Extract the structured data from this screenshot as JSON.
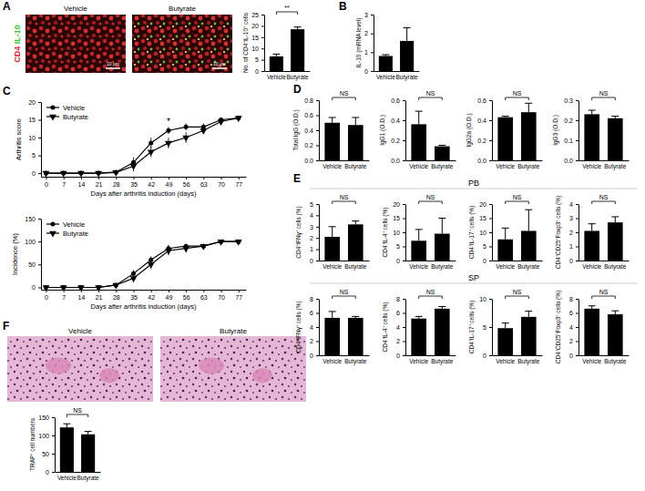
{
  "figure": {
    "panel_labels": [
      "A",
      "B",
      "C",
      "D",
      "E",
      "F"
    ],
    "row_labels": [
      "PB",
      "SP"
    ]
  },
  "images": {
    "A": {
      "labels": [
        "Vehicle",
        "Butyrate"
      ],
      "stain_labels": [
        {
          "text": "CD4",
          "color": "#e8202a"
        },
        {
          "text": "IL-10",
          "color": "#33cc33"
        }
      ],
      "scale_bar": "10 μm"
    },
    "F": {
      "labels": [
        "Vehicle",
        "Butyrate"
      ]
    }
  },
  "chart_data": [
    {
      "type": "bar",
      "y_label": "No. of CD4⁺IL-10⁺ cells",
      "categories": [
        "Vehicle",
        "Butyrate"
      ],
      "values": [
        6.5,
        18.5
      ],
      "errors": [
        1,
        1
      ],
      "color": "#000000",
      "ylim": [
        0,
        25
      ],
      "yticks": [
        0,
        5,
        10,
        15,
        20,
        25
      ],
      "annotations": [
        "**"
      ]
    },
    {
      "type": "bar",
      "y_label": "IL-10 (mRNA level)",
      "categories": [
        "Vehicle",
        "Butyrate"
      ],
      "values": [
        0.8,
        1.6
      ],
      "errors": [
        0.07,
        0.7
      ],
      "color": "#000000",
      "ylim": [
        0,
        3
      ],
      "yticks": [
        0,
        1,
        2,
        3
      ]
    },
    {
      "type": "line",
      "y_label": "Arthritis score",
      "x_label": "Days after arthritis induction (days)",
      "x": [
        0,
        7,
        14,
        21,
        28,
        35,
        42,
        49,
        56,
        63,
        70,
        77
      ],
      "xlim": [
        -2,
        80
      ],
      "xticks": [
        0,
        7,
        14,
        21,
        28,
        35,
        42,
        49,
        56,
        63,
        70,
        77
      ],
      "ylim": [
        -1,
        20
      ],
      "yticks": [
        0,
        5,
        10,
        15,
        20
      ],
      "legend": "top-left",
      "series": [
        {
          "name": "Vehicle",
          "color": "#000000",
          "marker": "circle",
          "values": [
            0,
            0,
            0,
            0,
            0.3,
            3,
            8.5,
            12,
            13,
            13,
            15,
            15.5
          ],
          "errors": [
            0,
            0,
            0,
            0,
            0.2,
            1.5,
            1.5,
            1,
            1,
            1,
            0.5,
            0.5
          ]
        },
        {
          "name": "Butyrate",
          "color": "#000000",
          "marker": "triangle-down",
          "values": [
            0,
            0,
            0,
            0,
            0.2,
            2,
            6,
            8.5,
            10,
            12,
            14.5,
            15.5
          ],
          "errors": [
            0,
            0,
            0,
            0,
            0.2,
            1.5,
            1.5,
            1.5,
            1.5,
            1,
            0.5,
            0.5
          ]
        }
      ],
      "annotations": [
        {
          "text": "*",
          "x": 49
        }
      ]
    },
    {
      "type": "line",
      "y_label": "Incidence (%)",
      "x_label": "Days after arthritis induction (days)",
      "x": [
        0,
        7,
        14,
        21,
        28,
        35,
        42,
        49,
        56,
        63,
        70,
        77
      ],
      "xlim": [
        -2,
        80
      ],
      "xticks": [
        0,
        7,
        14,
        21,
        28,
        35,
        42,
        49,
        56,
        63,
        70,
        77
      ],
      "ylim": [
        -5,
        150
      ],
      "yticks": [
        0,
        50,
        100,
        150
      ],
      "legend": "top-left",
      "series": [
        {
          "name": "Vehicle",
          "color": "#000000",
          "marker": "circle",
          "values": [
            0,
            0,
            0,
            0,
            5,
            30,
            60,
            85,
            90,
            90,
            100,
            100
          ],
          "errors": [
            0,
            0,
            0,
            0,
            3,
            8,
            8,
            8,
            5,
            5,
            0,
            0
          ]
        },
        {
          "name": "Butyrate",
          "color": "#000000",
          "marker": "triangle-down",
          "values": [
            0,
            0,
            0,
            0,
            5,
            20,
            50,
            80,
            85,
            90,
            100,
            100
          ],
          "errors": [
            0,
            0,
            0,
            0,
            3,
            8,
            10,
            10,
            8,
            5,
            0,
            0
          ]
        }
      ]
    },
    {
      "type": "bar",
      "y_label": "Total IgG (O.D.)",
      "categories": [
        "Vehicle",
        "Butyrate"
      ],
      "values": [
        0.5,
        0.47
      ],
      "errors": [
        0.07,
        0.1
      ],
      "color": "#000000",
      "ylim": [
        0,
        0.8
      ],
      "yticks": [
        {
          "value": 0,
          "label": "0.0"
        },
        0.2,
        0.4,
        0.6,
        0.8
      ],
      "annotations": [
        "NS"
      ]
    },
    {
      "type": "bar",
      "y_label": "IgG1 (O.D.)",
      "categories": [
        "Vehicle",
        "Butyrate"
      ],
      "values": [
        0.36,
        0.14
      ],
      "errors": [
        0.13,
        0.01
      ],
      "color": "#000000",
      "ylim": [
        0,
        0.6
      ],
      "yticks": [
        {
          "value": 0,
          "label": "0.0"
        },
        0.2,
        0.4,
        0.6
      ],
      "annotations": [
        "NS"
      ]
    },
    {
      "type": "bar",
      "y_label": "IgG2a (O.D.)",
      "categories": [
        "Vehicle",
        "Butyrate"
      ],
      "values": [
        0.43,
        0.48
      ],
      "errors": [
        0.01,
        0.09
      ],
      "color": "#000000",
      "ylim": [
        0,
        0.6
      ],
      "yticks": [
        {
          "value": 0,
          "label": "0.0"
        },
        0.2,
        0.4,
        0.6
      ],
      "annotations": [
        "NS"
      ]
    },
    {
      "type": "bar",
      "y_label": "IgG3 (O.D.)",
      "categories": [
        "Vehicle",
        "Butyrate"
      ],
      "values": [
        0.23,
        0.21
      ],
      "errors": [
        0.02,
        0.01
      ],
      "color": "#000000",
      "ylim": [
        0,
        0.3
      ],
      "yticks": [
        {
          "value": 0,
          "label": "0.0"
        },
        0.1,
        0.2,
        0.3
      ],
      "annotations": [
        "NS"
      ]
    },
    {
      "type": "bar",
      "y_label": "CD4⁺IFNγ⁺ cells (%)",
      "categories": [
        "Vehicle",
        "Butyrate"
      ],
      "values": [
        2.1,
        3.2
      ],
      "errors": [
        0.9,
        0.3
      ],
      "color": "#000000",
      "ylim": [
        0,
        5
      ],
      "yticks": [
        0,
        1,
        2,
        3,
        4,
        5
      ],
      "annotations": [
        "NS"
      ]
    },
    {
      "type": "bar",
      "y_label": "CD4⁺IL-4⁺ cells (%)",
      "categories": [
        "Vehicle",
        "Butyrate"
      ],
      "values": [
        7,
        9.5
      ],
      "errors": [
        4,
        5.5
      ],
      "color": "#000000",
      "ylim": [
        0,
        20
      ],
      "yticks": [
        0,
        5,
        10,
        15,
        20
      ],
      "annotations": [
        "NS"
      ]
    },
    {
      "type": "bar",
      "y_label": "CD4⁺IL-17⁺ cells (%)",
      "categories": [
        "Vehicle",
        "Butyrate"
      ],
      "values": [
        7.5,
        10.5
      ],
      "errors": [
        4,
        7.5
      ],
      "color": "#000000",
      "ylim": [
        0,
        20
      ],
      "yticks": [
        0,
        5,
        10,
        15,
        20
      ],
      "annotations": [
        "NS"
      ]
    },
    {
      "type": "bar",
      "y_label": "CD4⁺CD25⁺Foxp3⁺ cells (%)",
      "categories": [
        "Vehicle",
        "Butyrate"
      ],
      "values": [
        2.1,
        2.7
      ],
      "errors": [
        0.5,
        0.4
      ],
      "color": "#000000",
      "ylim": [
        0,
        4
      ],
      "yticks": [
        0,
        1,
        2,
        3,
        4
      ],
      "annotations": [
        "NS"
      ]
    },
    {
      "type": "bar",
      "y_label": "CD4⁺IFNγ⁺ cells (%)",
      "categories": [
        "Vehicle",
        "Butyrate"
      ],
      "values": [
        5.3,
        5.3
      ],
      "errors": [
        0.9,
        0.2
      ],
      "color": "#000000",
      "ylim": [
        0,
        8
      ],
      "yticks": [
        0,
        2,
        4,
        6,
        8
      ],
      "annotations": [
        "NS"
      ]
    },
    {
      "type": "bar",
      "y_label": "CD4⁺IL-4⁺ cells (%)",
      "categories": [
        "Vehicle",
        "Butyrate"
      ],
      "values": [
        5.2,
        6.6
      ],
      "errors": [
        0.3,
        0.3
      ],
      "color": "#000000",
      "ylim": [
        0,
        8
      ],
      "yticks": [
        0,
        2,
        4,
        6,
        8
      ],
      "annotations": [
        "NS"
      ]
    },
    {
      "type": "bar",
      "y_label": "CD4⁺IL-17⁺ cells (%)",
      "categories": [
        "Vehicle",
        "Butyrate"
      ],
      "values": [
        4.8,
        6.8
      ],
      "errors": [
        0.9,
        1
      ],
      "color": "#000000",
      "ylim": [
        0,
        10
      ],
      "yticks": [
        0,
        5,
        10
      ],
      "annotations": [
        "NS"
      ]
    },
    {
      "type": "bar",
      "y_label": "CD4⁺CD25⁺Foxp3⁺ cells (%)",
      "categories": [
        "Vehicle",
        "Butyrate"
      ],
      "values": [
        6.6,
        5.8
      ],
      "errors": [
        0.4,
        0.5
      ],
      "color": "#000000",
      "ylim": [
        0,
        8
      ],
      "yticks": [
        0,
        2,
        4,
        6,
        8
      ],
      "annotations": [
        "NS"
      ]
    },
    {
      "type": "bar",
      "y_label": "TRAP⁺ cell numbers",
      "categories": [
        "Vehicle",
        "Butyrate"
      ],
      "values": [
        122,
        103
      ],
      "errors": [
        10,
        8
      ],
      "color": "#000000",
      "ylim": [
        0,
        150
      ],
      "yticks": [
        0,
        50,
        100,
        150
      ],
      "annotations": [
        "NS"
      ]
    }
  ]
}
